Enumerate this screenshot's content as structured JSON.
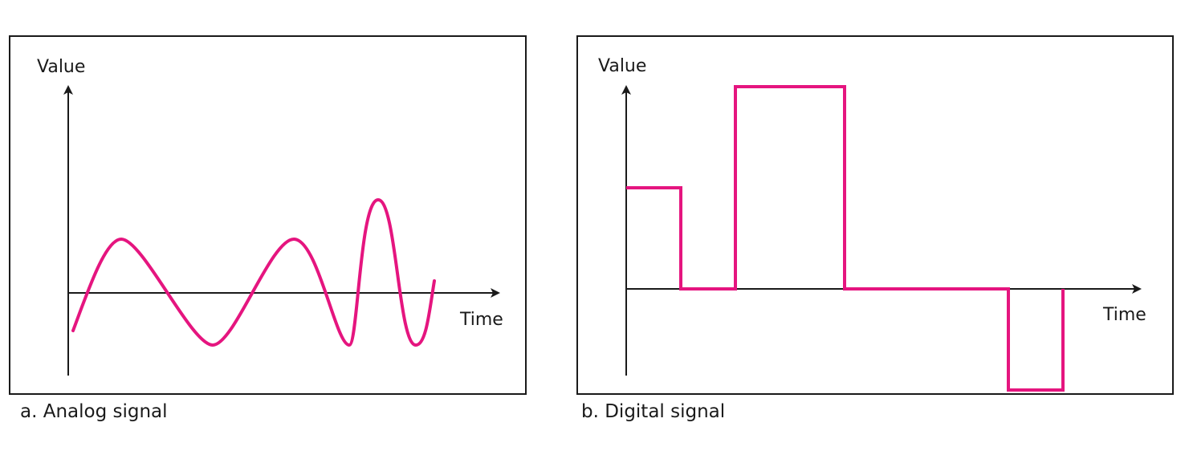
{
  "colors": {
    "signal": "#e5157f",
    "axis": "#1a1a1a"
  },
  "analog": {
    "y_label": "Value",
    "x_label": "Time",
    "caption": "a. Analog signal"
  },
  "digital": {
    "y_label": "Value",
    "x_label": "Time",
    "caption": "b. Digital signal",
    "levels": [
      {
        "start": 0,
        "end": 1,
        "value": 1
      },
      {
        "start": 1,
        "end": 2,
        "value": 0
      },
      {
        "start": 2,
        "end": 4,
        "value": 2
      },
      {
        "start": 4,
        "end": 7,
        "value": 0
      },
      {
        "start": 7,
        "end": 8,
        "value": -1
      }
    ]
  }
}
